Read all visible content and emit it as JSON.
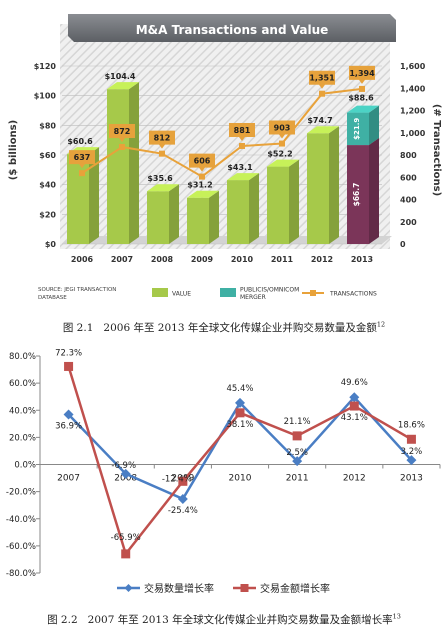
{
  "figure1": {
    "caption_number": "图 2.1",
    "caption_text": "2006 年至 2013 年全球文化传媒企业并购交易数量及金额",
    "caption_ref": "12"
  },
  "figure2": {
    "caption_number": "图 2.2",
    "caption_text": "2007 年至 2013 年全球文化传媒企业并购交易数量及金额增长率",
    "caption_ref": "13"
  },
  "chart_data": [
    {
      "type": "bar",
      "title": "M&A Transactions and Value",
      "ylabel": "($ billions)",
      "y2label": "(# Transactions)",
      "ylim": [
        0,
        120
      ],
      "y2lim": [
        0,
        1600
      ],
      "yticks": [
        "$0",
        "$20",
        "$40",
        "$60",
        "$80",
        "$100",
        "$120"
      ],
      "y2ticks": [
        "0",
        "200",
        "400",
        "600",
        "800",
        "1,000",
        "1,200",
        "1,400",
        "1,600"
      ],
      "categories": [
        "2006",
        "2007",
        "2008",
        "2009",
        "2010",
        "2011",
        "2012",
        "2013"
      ],
      "series": [
        {
          "name": "VALUE",
          "type": "bar",
          "color": "#a6c94a",
          "values": [
            60.6,
            104.4,
            35.6,
            31.2,
            43.1,
            52.2,
            74.7,
            66.7
          ],
          "labels": [
            "$60.6",
            "$104.4",
            "$35.6",
            "$31.2",
            "$43.1",
            "$52.2",
            "$74.7",
            "$66.7"
          ]
        },
        {
          "name": "PUBLICIS/OMNICOM MERGER",
          "type": "bar",
          "color": "#3fb0a4",
          "values": [
            null,
            null,
            null,
            null,
            null,
            null,
            null,
            21.9
          ],
          "labels": [
            "",
            "",
            "",
            "",
            "",
            "",
            "",
            "$21.9"
          ]
        },
        {
          "name": "TRANSACTIONS",
          "type": "line",
          "axis": "right",
          "color": "#e8a23a",
          "values": [
            637,
            872,
            812,
            606,
            881,
            903,
            1351,
            1394
          ],
          "labels": [
            "637",
            "872",
            "812",
            "606",
            "881",
            "903",
            "1,351",
            "1,394"
          ]
        }
      ],
      "total_label_2013": "$88.6",
      "value_color_2013": "#7b3559",
      "source": "SOURCE: JEGI TRANSACTION DATABASE",
      "legend_position": "bottom"
    },
    {
      "type": "line",
      "categories": [
        "2007",
        "2008",
        "2009",
        "2010",
        "2011",
        "2012",
        "2013"
      ],
      "ylim": [
        -80,
        80
      ],
      "yticks": [
        "-80.0%",
        "-60.0%",
        "-40.0%",
        "-20.0%",
        "0.0%",
        "20.0%",
        "40.0%",
        "60.0%",
        "80.0%"
      ],
      "grid": false,
      "legend_position": "bottom",
      "series": [
        {
          "name": "交易数量增长率",
          "color": "#4a7ec4",
          "marker": "diamond",
          "values": [
            36.9,
            -6.9,
            -25.4,
            45.4,
            2.5,
            49.6,
            3.2
          ],
          "labels": [
            "36.9%",
            "-6.9%",
            "-25.4%",
            "45.4%",
            "2.5%",
            "49.6%",
            "3.2%"
          ]
        },
        {
          "name": "交易金额增长率",
          "color": "#c0504d",
          "marker": "square",
          "values": [
            72.3,
            -65.9,
            -12.4,
            38.1,
            21.1,
            43.1,
            18.6
          ],
          "labels": [
            "72.3%",
            "-65.9%",
            "-12.4%",
            "38.1%",
            "21.1%",
            "43.1%",
            "18.6%"
          ]
        }
      ]
    }
  ]
}
